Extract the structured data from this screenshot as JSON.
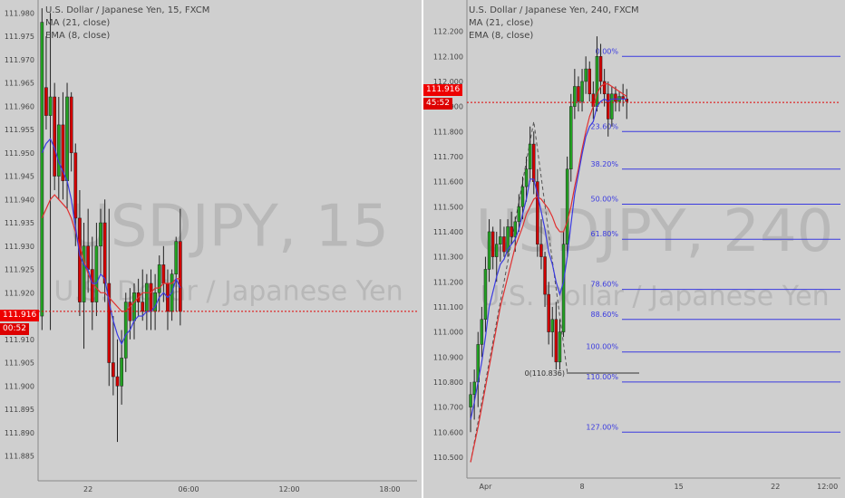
{
  "colors": {
    "bg": "#cfcfcf",
    "up": "#22a022",
    "down": "#d10000",
    "wick": "#222222",
    "ma": "#e03030",
    "ema": "#3a3ae0",
    "fib": "#3a3ae0",
    "price_line": "#e00000",
    "axis_text": "#444444",
    "watermark": "#b8b8b8"
  },
  "chart_data": [
    {
      "type": "candlestick",
      "title": "U.S. Dollar / Japanese Yen, 15, FXCM",
      "legend": [
        "MA (21, close)",
        "EMA (8, close)"
      ],
      "watermark_symbol": "USDJPY, 15",
      "watermark_name": "U.S. Dollar / Japanese Yen",
      "ylim": [
        111.882,
        111.982
      ],
      "yticks": [
        "111.980",
        "111.975",
        "111.970",
        "111.965",
        "111.960",
        "111.955",
        "111.950",
        "111.945",
        "111.940",
        "111.935",
        "111.930",
        "111.925",
        "111.920",
        "111.915",
        "111.910",
        "111.905",
        "111.900",
        "111.895",
        "111.890",
        "111.885"
      ],
      "xticks": [
        {
          "label": "22",
          "i": 11
        },
        {
          "label": "06:00",
          "i": 35
        },
        {
          "label": "12:00",
          "i": 59
        },
        {
          "label": "18:00",
          "i": 83
        }
      ],
      "n_slots": 90,
      "last_price": "111.916",
      "countdown": "00:52",
      "ohlc": [
        [
          111.915,
          111.981,
          111.912,
          111.978
        ],
        [
          111.964,
          111.975,
          111.955,
          111.958
        ],
        [
          111.958,
          111.98,
          111.912,
          111.962
        ],
        [
          111.962,
          111.965,
          111.942,
          111.945
        ],
        [
          111.945,
          111.962,
          111.94,
          111.956
        ],
        [
          111.956,
          111.963,
          111.94,
          111.944
        ],
        [
          111.944,
          111.965,
          111.938,
          111.962
        ],
        [
          111.962,
          111.963,
          111.946,
          111.95
        ],
        [
          111.95,
          111.952,
          111.93,
          111.936
        ],
        [
          111.936,
          111.942,
          111.915,
          111.918
        ],
        [
          111.918,
          111.935,
          111.908,
          111.93
        ],
        [
          111.93,
          111.938,
          111.92,
          111.925
        ],
        [
          111.925,
          111.932,
          111.912,
          111.918
        ],
        [
          111.918,
          111.935,
          111.915,
          111.93
        ],
        [
          111.93,
          111.938,
          111.924,
          111.935
        ],
        [
          111.935,
          111.94,
          111.918,
          111.922
        ],
        [
          111.922,
          111.938,
          111.9,
          111.905
        ],
        [
          111.905,
          111.915,
          111.898,
          111.902
        ],
        [
          111.902,
          111.91,
          111.888,
          111.9
        ],
        [
          111.9,
          111.912,
          111.896,
          111.906
        ],
        [
          111.906,
          111.92,
          111.903,
          111.918
        ],
        [
          111.918,
          111.921,
          111.91,
          111.914
        ],
        [
          111.914,
          111.922,
          111.91,
          111.92
        ],
        [
          111.92,
          111.923,
          111.915,
          111.918
        ],
        [
          111.918,
          111.925,
          111.914,
          111.916
        ],
        [
          111.916,
          111.924,
          111.912,
          111.922
        ],
        [
          111.922,
          111.925,
          111.912,
          111.916
        ],
        [
          111.916,
          111.924,
          111.912,
          111.92
        ],
        [
          111.92,
          111.928,
          111.916,
          111.926
        ],
        [
          111.926,
          111.93,
          111.918,
          111.922
        ],
        [
          111.922,
          111.925,
          111.912,
          111.916
        ],
        [
          111.916,
          111.925,
          111.914,
          111.924
        ],
        [
          111.924,
          111.932,
          111.916,
          111.931
        ],
        [
          111.931,
          111.938,
          111.913,
          111.916
        ]
      ],
      "ma": [
        111.936,
        111.938,
        111.94,
        111.941,
        111.94,
        111.939,
        111.938,
        111.936,
        111.933,
        111.93,
        111.927,
        111.924,
        111.922,
        111.921,
        111.92,
        111.92,
        111.919,
        111.918,
        111.917,
        111.916,
        111.916,
        111.917,
        111.918,
        111.919,
        111.92,
        111.92,
        111.92,
        111.921,
        111.921,
        111.922,
        111.922,
        111.922,
        111.923,
        111.923
      ],
      "ema": [
        111.95,
        111.952,
        111.953,
        111.951,
        111.948,
        111.946,
        111.944,
        111.94,
        111.934,
        111.928,
        111.926,
        111.925,
        111.922,
        111.922,
        111.924,
        111.923,
        111.918,
        111.914,
        111.911,
        111.909,
        111.911,
        111.912,
        111.914,
        111.915,
        111.915,
        111.916,
        111.916,
        111.917,
        111.919,
        111.92,
        111.919,
        111.92,
        111.923,
        111.921
      ]
    },
    {
      "type": "candlestick",
      "title": "U.S. Dollar / Japanese Yen, 240, FXCM",
      "legend": [
        "MA (21, close)",
        "EMA (8, close)"
      ],
      "watermark_symbol": "USDJPY, 240",
      "watermark_name": "U.S. Dollar / Japanese Yen",
      "ylim": [
        110.46,
        112.26
      ],
      "yticks": [
        "112.200",
        "112.100",
        "112.000",
        "111.900",
        "111.800",
        "111.700",
        "111.600",
        "111.500",
        "111.400",
        "111.300",
        "111.200",
        "111.100",
        "111.000",
        "110.900",
        "110.800",
        "110.700",
        "110.600",
        "110.500"
      ],
      "xticks": [
        {
          "label": "Apr",
          "i": 4
        },
        {
          "label": "8",
          "i": 30
        },
        {
          "label": "15",
          "i": 56
        },
        {
          "label": "22",
          "i": 82
        },
        {
          "label": "12:00",
          "i": 96
        }
      ],
      "n_slots": 100,
      "last_price": "111.916",
      "countdown": "45:52",
      "fib_labels": [
        {
          "label": "0.00%",
          "price": 112.1
        },
        {
          "label": "23.60%",
          "price": 111.8
        },
        {
          "label": "38.20%",
          "price": 111.65
        },
        {
          "label": "50.00%",
          "price": 111.51
        },
        {
          "label": "61.80%",
          "price": 111.37
        },
        {
          "label": "78.60%",
          "price": 111.17
        },
        {
          "label": "88.60%",
          "price": 111.05
        },
        {
          "label": "100.00%",
          "price": 110.92
        },
        {
          "label": "110.00%",
          "price": 110.8
        },
        {
          "label": "127.00%",
          "price": 110.6
        }
      ],
      "annotation": "0(110.836)",
      "ohlc": [
        [
          110.7,
          110.8,
          110.6,
          110.75
        ],
        [
          110.75,
          110.85,
          110.65,
          110.8
        ],
        [
          110.8,
          111.0,
          110.7,
          110.95
        ],
        [
          110.95,
          111.1,
          110.9,
          111.05
        ],
        [
          111.05,
          111.3,
          111.0,
          111.25
        ],
        [
          111.25,
          111.45,
          111.2,
          111.4
        ],
        [
          111.4,
          111.42,
          111.25,
          111.3
        ],
        [
          111.3,
          111.4,
          111.2,
          111.35
        ],
        [
          111.35,
          111.45,
          111.28,
          111.38
        ],
        [
          111.38,
          111.42,
          111.3,
          111.32
        ],
        [
          111.32,
          111.45,
          111.3,
          111.42
        ],
        [
          111.42,
          111.48,
          111.35,
          111.38
        ],
        [
          111.38,
          111.46,
          111.32,
          111.44
        ],
        [
          111.44,
          111.55,
          111.4,
          111.5
        ],
        [
          111.5,
          111.62,
          111.45,
          111.58
        ],
        [
          111.58,
          111.7,
          111.52,
          111.65
        ],
        [
          111.65,
          111.82,
          111.6,
          111.75
        ],
        [
          111.75,
          111.8,
          111.55,
          111.6
        ],
        [
          111.6,
          111.65,
          111.3,
          111.35
        ],
        [
          111.35,
          111.45,
          111.25,
          111.3
        ],
        [
          111.3,
          111.32,
          111.1,
          111.15
        ],
        [
          111.15,
          111.2,
          110.95,
          111.0
        ],
        [
          111.0,
          111.1,
          110.9,
          111.05
        ],
        [
          111.05,
          111.12,
          110.85,
          110.88
        ],
        [
          110.88,
          111.05,
          110.85,
          111.0
        ],
        [
          111.0,
          111.4,
          110.98,
          111.35
        ],
        [
          111.35,
          111.7,
          111.3,
          111.65
        ],
        [
          111.65,
          111.95,
          111.6,
          111.9
        ],
        [
          111.9,
          112.05,
          111.85,
          111.98
        ],
        [
          111.98,
          112.02,
          111.88,
          111.92
        ],
        [
          111.92,
          112.05,
          111.88,
          112.0
        ],
        [
          112.0,
          112.1,
          111.95,
          112.05
        ],
        [
          112.05,
          112.08,
          111.92,
          111.95
        ],
        [
          111.95,
          112.0,
          111.85,
          111.9
        ],
        [
          111.9,
          112.18,
          111.88,
          112.1
        ],
        [
          112.1,
          112.15,
          111.95,
          112.0
        ],
        [
          112.0,
          112.05,
          111.9,
          111.95
        ],
        [
          111.95,
          112.0,
          111.78,
          111.85
        ],
        [
          111.85,
          111.98,
          111.82,
          111.95
        ],
        [
          111.95,
          111.98,
          111.88,
          111.92
        ],
        [
          111.92,
          111.96,
          111.88,
          111.94
        ],
        [
          111.94,
          111.99,
          111.9,
          111.93
        ],
        [
          111.93,
          111.97,
          111.85,
          111.92
        ]
      ],
      "ma": [
        110.48,
        110.55,
        110.62,
        110.7,
        110.78,
        110.86,
        110.94,
        111.02,
        111.1,
        111.16,
        111.22,
        111.28,
        111.34,
        111.38,
        111.42,
        111.47,
        111.5,
        111.53,
        111.54,
        111.53,
        111.51,
        111.49,
        111.46,
        111.42,
        111.4,
        111.4,
        111.44,
        111.5,
        111.58,
        111.65,
        111.73,
        111.8,
        111.86,
        111.9,
        111.95,
        111.98,
        111.99,
        111.99,
        111.98,
        111.97,
        111.96,
        111.95,
        111.94
      ],
      "ema": [
        110.65,
        110.72,
        110.8,
        110.88,
        110.98,
        111.1,
        111.16,
        111.22,
        111.27,
        111.29,
        111.33,
        111.35,
        111.37,
        111.41,
        111.47,
        111.53,
        111.61,
        111.61,
        111.55,
        111.48,
        111.41,
        111.32,
        111.27,
        111.2,
        111.15,
        111.2,
        111.3,
        111.43,
        111.55,
        111.63,
        111.71,
        111.78,
        111.82,
        111.84,
        111.9,
        111.92,
        111.93,
        111.92,
        111.93,
        111.93,
        111.93,
        111.93,
        111.93
      ]
    }
  ]
}
